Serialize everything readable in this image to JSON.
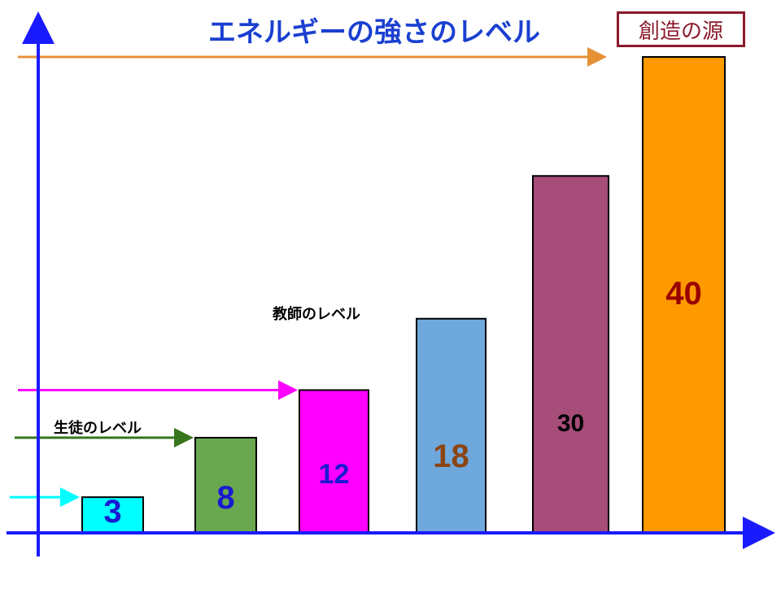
{
  "title": "エネルギーの強さのレベル",
  "source_label": "創造の源",
  "level_labels": {
    "student": "生徒のレベル",
    "teacher": "教師のレベル"
  },
  "chart_data": {
    "type": "bar",
    "title": "エネルギーの強さのレベル",
    "categories": [
      "",
      "",
      "",
      "",
      "",
      ""
    ],
    "values": [
      3,
      8,
      12,
      18,
      30,
      40
    ],
    "value_labels": [
      "3",
      "8",
      "12",
      "18",
      "30",
      "40"
    ],
    "ylim": [
      0,
      42
    ],
    "grid": false,
    "bar_colors": [
      "#00ffff",
      "#6aa84f",
      "#ff00ff",
      "#6fa8dc",
      "#a64d79",
      "#ff9900"
    ],
    "label_colors": [
      "#1a1ad1",
      "#1a1ad1",
      "#1a1ad1",
      "#8b4513",
      "#000000",
      "#990000"
    ],
    "axis_color": "#1a1aff",
    "level_arrows": [
      {
        "level": 3,
        "color": "#00ffff"
      },
      {
        "level": 8,
        "color": "#38761d"
      },
      {
        "level": 12,
        "color": "#ff00ff"
      },
      {
        "level": 40,
        "color": "#e69138"
      }
    ]
  }
}
